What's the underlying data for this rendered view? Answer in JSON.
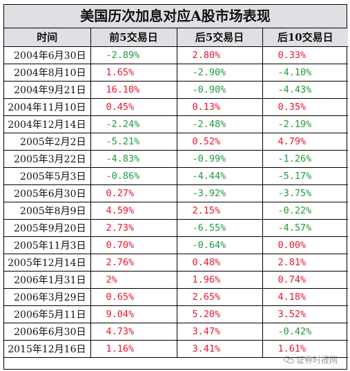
{
  "title": "美国历次加息对应A股市场表现",
  "headers": [
    "时间",
    "前5交易日",
    "后5交易日",
    "后10交易日"
  ],
  "rows": [
    {
      "date": "2004年6月30日",
      "pre5": "-2.89%",
      "post5": "2.80%",
      "post10": "0.33%"
    },
    {
      "date": "2004年8月10日",
      "pre5": "1.65%",
      "post5": "-2.90%",
      "post10": "-4.10%"
    },
    {
      "date": "2004年9月21日",
      "pre5": "16.10%",
      "post5": "-0.90%",
      "post10": "-4.43%"
    },
    {
      "date": "2004年11月10日",
      "pre5": "0.45%",
      "post5": "0.13%",
      "post10": "0.35%"
    },
    {
      "date": "2004年12月14日",
      "pre5": "-2.24%",
      "post5": "-2.48%",
      "post10": "-2.19%"
    },
    {
      "date": "2005年2月2日",
      "pre5": "-5.21%",
      "post5": "0.52%",
      "post10": "4.79%"
    },
    {
      "date": "2005年3月22日",
      "pre5": "-4.83%",
      "post5": "-0.99%",
      "post10": "-1.26%"
    },
    {
      "date": "2005年5月3日",
      "pre5": "-0.86%",
      "post5": "-4.44%",
      "post10": "-5.17%"
    },
    {
      "date": "2005年6月30日",
      "pre5": "0.27%",
      "post5": "-3.92%",
      "post10": "-3.75%"
    },
    {
      "date": "2005年8月9日",
      "pre5": "4.59%",
      "post5": "2.15%",
      "post10": "-0.22%"
    },
    {
      "date": "2005年9月20日",
      "pre5": "2.73%",
      "post5": "-6.55%",
      "post10": "-4.57%"
    },
    {
      "date": "2005年11月3日",
      "pre5": "0.70%",
      "post5": "-0.64%",
      "post10": "0.00%"
    },
    {
      "date": "2005年12月14日",
      "pre5": "2.76%",
      "post5": "0.48%",
      "post10": "2.81%"
    },
    {
      "date": "2006年1月31日",
      "pre5": "2%",
      "post5": "1.96%",
      "post10": "0.74%"
    },
    {
      "date": "2006年3月29日",
      "pre5": "0.65%",
      "post5": "2.65%",
      "post10": "4.18%"
    },
    {
      "date": "2006年5月11日",
      "pre5": "9.04%",
      "post5": "5.20%",
      "post10": "3.52%"
    },
    {
      "date": "2006年6月30日",
      "pre5": "4.73%",
      "post5": "3.47%",
      "post10": "-0.42%"
    },
    {
      "date": "2015年12月16日",
      "pre5": "1.16%",
      "post5": "3.41%",
      "post10": "1.61%"
    }
  ],
  "colors": {
    "positive": "#e8162c",
    "negative": "#1d9a3e",
    "header_bg": "#dfe0e3"
  },
  "watermark": {
    "text": "证券时报网",
    "icon": "wechat-icon"
  }
}
